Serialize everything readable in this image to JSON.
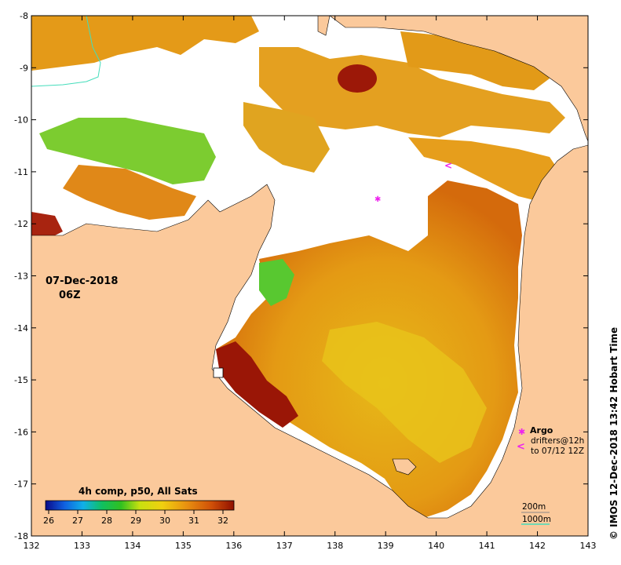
{
  "map": {
    "date_label": "07-Dec-2018",
    "time_label": "06Z",
    "credit": "© IMOS 12-Dec-2018 13:42 Hobart Time",
    "colors": {
      "land": "#fbc99b",
      "cloud": "#ffffff",
      "bathy_200m": "#888888",
      "bathy_1000m": "#44ddbb",
      "argo": "#ee22ee"
    },
    "x_axis": {
      "min": 132,
      "max": 143,
      "ticks": [
        "132",
        "133",
        "134",
        "135",
        "136",
        "137",
        "138",
        "139",
        "140",
        "141",
        "142",
        "143"
      ]
    },
    "y_axis": {
      "min": -18,
      "max": -8,
      "ticks": [
        "-8",
        "-9",
        "-10",
        "-11",
        "-12",
        "-13",
        "-14",
        "-15",
        "-16",
        "-17",
        "-18"
      ]
    }
  },
  "legend": {
    "colorbar_title": "4h comp, p50, All Sats",
    "colorbar_ticks": [
      "26",
      "27",
      "28",
      "29",
      "30",
      "31",
      "32"
    ],
    "argo_label": "Argo",
    "drifter_label_1": "drifters@12h",
    "drifter_label_2": "to 07/12 12Z",
    "drifter_symbol": "<",
    "bathy_200_label": "200m",
    "bathy_1000_label": "1000m"
  }
}
